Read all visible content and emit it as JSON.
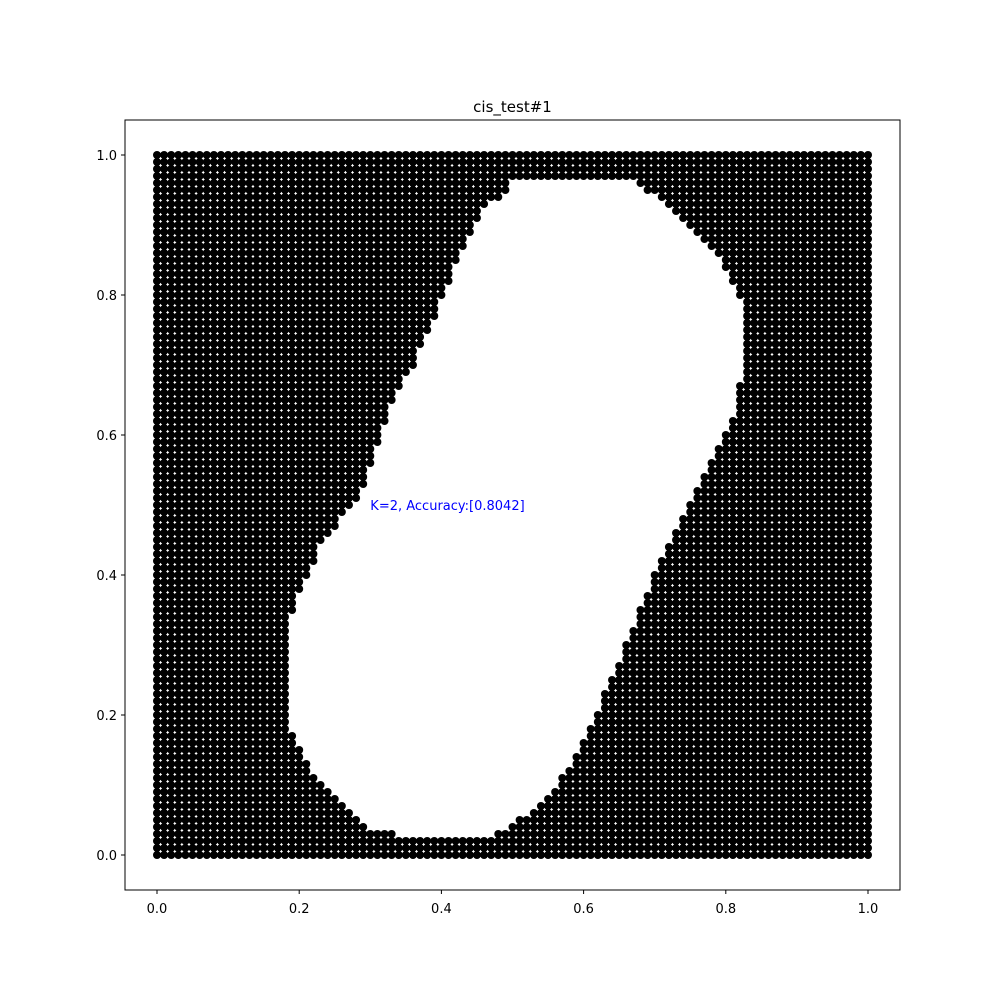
{
  "chart_data": {
    "type": "scatter",
    "title": "cis_test#1",
    "xlabel": "",
    "ylabel": "",
    "xlim": [
      -0.045,
      1.045
    ],
    "ylim": [
      -0.05,
      1.05
    ],
    "xticks": [
      "0.0",
      "0.2",
      "0.4",
      "0.6",
      "0.8",
      "1.0"
    ],
    "yticks": [
      "0.0",
      "0.2",
      "0.4",
      "0.6",
      "0.8",
      "1.0"
    ],
    "grid": false,
    "annotation": {
      "text": "K=2, Accuracy:[0.8042]",
      "x": 0.3,
      "y": 0.5,
      "color": "#0000ff"
    },
    "point_grid": {
      "step": 0.01,
      "x_range": [
        0,
        1
      ],
      "y_range": [
        0,
        1
      ]
    },
    "colors": {
      "class_black": "#000000",
      "class_white": "#ffffff"
    },
    "white_region": {
      "description_boundary": [
        [
          0.51,
          0.97
        ],
        [
          0.66,
          0.97
        ],
        [
          0.72,
          0.93
        ],
        [
          0.79,
          0.86
        ],
        [
          0.82,
          0.8
        ],
        [
          0.83,
          0.73
        ],
        [
          0.81,
          0.62
        ],
        [
          0.76,
          0.52
        ],
        [
          0.7,
          0.4
        ],
        [
          0.66,
          0.3
        ],
        [
          0.6,
          0.16
        ],
        [
          0.55,
          0.08
        ],
        [
          0.48,
          0.03
        ],
        [
          0.37,
          0.02
        ],
        [
          0.3,
          0.04
        ],
        [
          0.22,
          0.12
        ],
        [
          0.19,
          0.18
        ],
        [
          0.19,
          0.35
        ],
        [
          0.23,
          0.44
        ],
        [
          0.29,
          0.52
        ],
        [
          0.33,
          0.64
        ],
        [
          0.38,
          0.74
        ],
        [
          0.42,
          0.84
        ],
        [
          0.46,
          0.92
        ]
      ]
    }
  }
}
